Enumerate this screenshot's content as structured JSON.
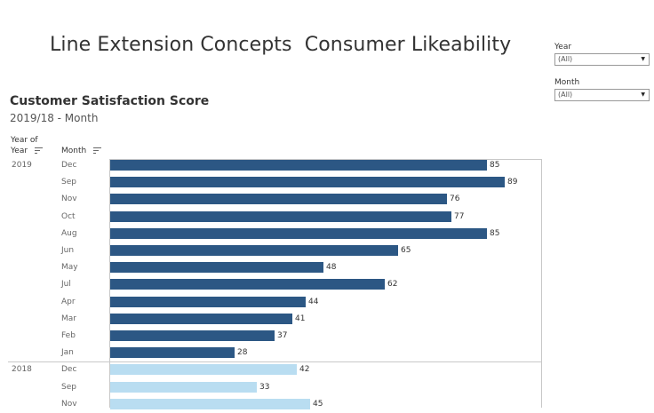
{
  "dashboard": {
    "title": "Line Extension Concepts  Consumer Likeability"
  },
  "filters": [
    {
      "label": "Year",
      "value": "(All)"
    },
    {
      "label": "Month",
      "value": "(All)"
    }
  ],
  "worksheet": {
    "title": "Customer Satisfaction Score",
    "subtitle": "2019/18 - Month",
    "headers": {
      "year": [
        "Year of",
        "Year"
      ],
      "month": "Month"
    }
  },
  "colors": {
    "y2019": "#2c5784",
    "y2018": "#b9ddf1"
  },
  "chart_data": {
    "type": "bar",
    "orientation": "horizontal",
    "xlim": [
      0,
      100
    ],
    "grid": false,
    "rows": [
      {
        "year": "2019",
        "month": "Dec",
        "value": 85
      },
      {
        "year": "",
        "month": "Sep",
        "value": 89
      },
      {
        "year": "",
        "month": "Nov",
        "value": 76
      },
      {
        "year": "",
        "month": "Oct",
        "value": 77
      },
      {
        "year": "",
        "month": "Aug",
        "value": 85
      },
      {
        "year": "",
        "month": "Jun",
        "value": 65
      },
      {
        "year": "",
        "month": "May",
        "value": 48
      },
      {
        "year": "",
        "month": "Jul",
        "value": 62
      },
      {
        "year": "",
        "month": "Apr",
        "value": 44
      },
      {
        "year": "",
        "month": "Mar",
        "value": 41
      },
      {
        "year": "",
        "month": "Feb",
        "value": 37
      },
      {
        "year": "",
        "month": "Jan",
        "value": 28
      },
      {
        "year": "2018",
        "month": "Dec",
        "value": 42
      },
      {
        "year": "",
        "month": "Sep",
        "value": 33
      },
      {
        "year": "",
        "month": "Nov",
        "value": 45
      }
    ]
  }
}
